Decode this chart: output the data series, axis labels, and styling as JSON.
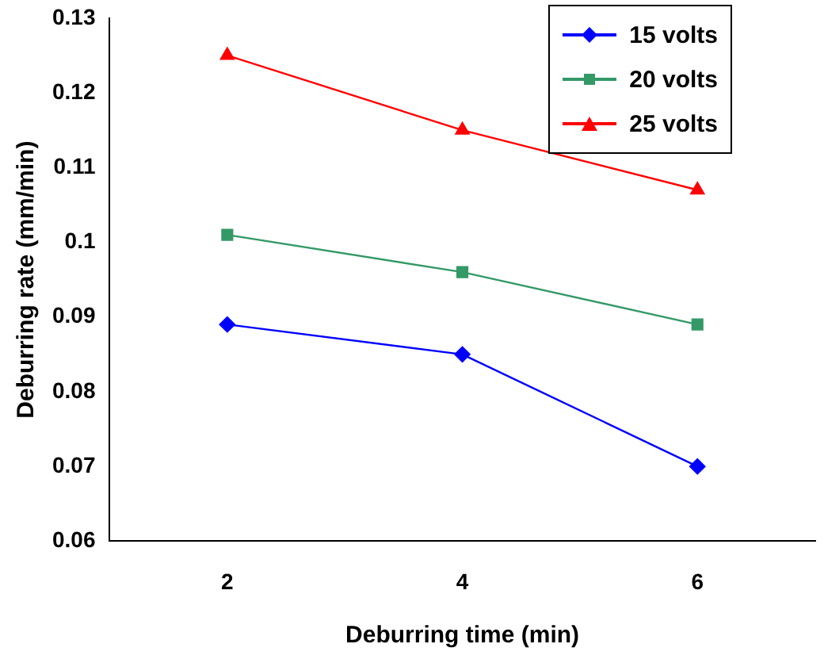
{
  "chart_data": {
    "type": "line",
    "xlabel": "Deburring time (min)",
    "ylabel": "Deburring rate (mm/min)",
    "categories": [
      "2",
      "4",
      "6"
    ],
    "series": [
      {
        "name": "15 volts",
        "color": "#0000ff",
        "marker": "diamond",
        "values": [
          0.089,
          0.085,
          0.07
        ]
      },
      {
        "name": "20 volts",
        "color": "#339966",
        "marker": "square",
        "values": [
          0.101,
          0.096,
          0.089
        ]
      },
      {
        "name": "25 volts",
        "color": "#ff0000",
        "marker": "triangle",
        "values": [
          0.125,
          0.115,
          0.107
        ]
      }
    ],
    "ylim": [
      0.06,
      0.13
    ],
    "yticks": [
      0.06,
      0.07,
      0.08,
      0.09,
      0.1,
      0.11,
      0.12,
      0.13
    ],
    "grid": false,
    "legend": "top right",
    "line_style": "solid"
  }
}
